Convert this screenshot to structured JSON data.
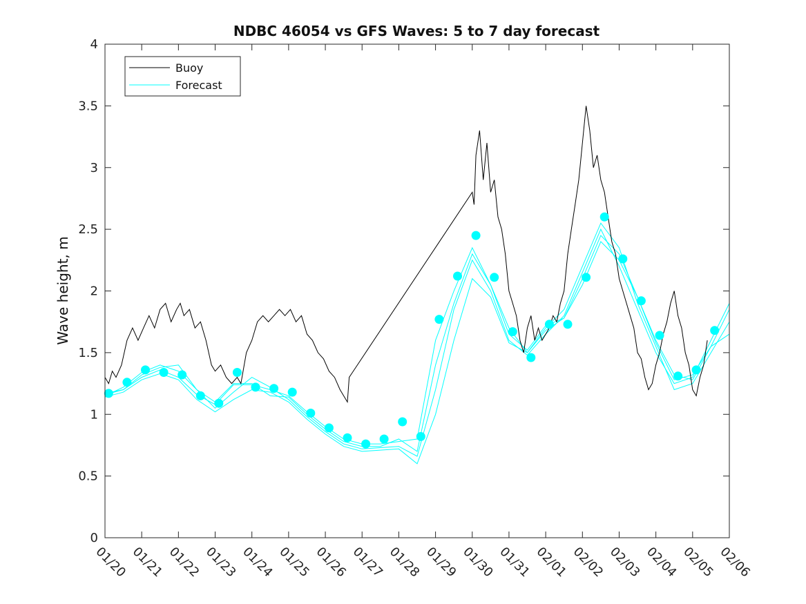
{
  "chart_data": {
    "type": "line",
    "title": "NDBC 46054 vs GFS Waves: 5 to 7 day forecast",
    "xlabel": "",
    "ylabel": "Wave height, m",
    "xlim": [
      0,
      17
    ],
    "ylim": [
      0,
      4
    ],
    "grid": false,
    "legend": {
      "position": "top-left",
      "entries": [
        "Buoy",
        "Forecast"
      ]
    },
    "colors": {
      "buoy": "#000000",
      "forecast": "#00ffff",
      "axes": "#262626"
    },
    "x_unit": "days since 01/20",
    "x_ticks": [
      0,
      1,
      2,
      3,
      4,
      5,
      6,
      7,
      8,
      9,
      10,
      11,
      12,
      13,
      14,
      15,
      16,
      17
    ],
    "x_tick_labels": [
      "01/20",
      "01/21",
      "01/22",
      "01/23",
      "01/24",
      "01/25",
      "01/26",
      "01/27",
      "01/28",
      "01/29",
      "01/30",
      "01/31",
      "02/01",
      "02/02",
      "02/03",
      "02/04",
      "02/05",
      "02/06"
    ],
    "y_ticks": [
      0,
      0.5,
      1,
      1.5,
      2,
      2.5,
      3,
      3.5,
      4
    ],
    "y_tick_labels": [
      "0",
      "0.5",
      "1",
      "1.5",
      "2",
      "2.5",
      "3",
      "3.5",
      "4"
    ],
    "series": [
      {
        "name": "Buoy",
        "kind": "line",
        "x": [
          0,
          0.1,
          0.2,
          0.3,
          0.45,
          0.6,
          0.75,
          0.9,
          1.05,
          1.2,
          1.35,
          1.5,
          1.65,
          1.8,
          1.95,
          2.05,
          2.15,
          2.3,
          2.45,
          2.6,
          2.75,
          2.9,
          3.0,
          3.15,
          3.3,
          3.45,
          3.6,
          3.7,
          3.85,
          4.0,
          4.15,
          4.3,
          4.45,
          4.6,
          4.75,
          4.9,
          5.05,
          5.2,
          5.35,
          5.5,
          5.65,
          5.8,
          5.95,
          6.1,
          6.25,
          6.4,
          6.5,
          6.6,
          6.65,
          10.0,
          10.05,
          10.1,
          10.2,
          10.3,
          10.4,
          10.5,
          10.6,
          10.7,
          10.8,
          10.9,
          11.0,
          11.1,
          11.2,
          11.3,
          11.4,
          11.5,
          11.6,
          11.7,
          11.8,
          11.9,
          12.0,
          12.1,
          12.2,
          12.3,
          12.4,
          12.5,
          12.6,
          12.7,
          12.8,
          12.9,
          13.0,
          13.1,
          13.2,
          13.3,
          13.4,
          13.5,
          13.6,
          13.7,
          13.8,
          13.9,
          14.0,
          14.1,
          14.2,
          14.3,
          14.4,
          14.5,
          14.6,
          14.7,
          14.8,
          14.9,
          15.0,
          15.1,
          15.2,
          15.3,
          15.4,
          15.5,
          15.6,
          15.7,
          15.8,
          15.9,
          16.0,
          16.1,
          16.2,
          16.3,
          16.4
        ],
        "y": [
          1.3,
          1.25,
          1.35,
          1.3,
          1.4,
          1.6,
          1.7,
          1.6,
          1.7,
          1.8,
          1.7,
          1.85,
          1.9,
          1.75,
          1.85,
          1.9,
          1.8,
          1.85,
          1.7,
          1.75,
          1.6,
          1.4,
          1.35,
          1.4,
          1.3,
          1.25,
          1.3,
          1.25,
          1.5,
          1.6,
          1.75,
          1.8,
          1.75,
          1.8,
          1.85,
          1.8,
          1.85,
          1.75,
          1.8,
          1.65,
          1.6,
          1.5,
          1.45,
          1.35,
          1.3,
          1.2,
          1.15,
          1.1,
          1.3,
          2.8,
          2.7,
          3.1,
          3.3,
          2.9,
          3.2,
          2.8,
          2.9,
          2.6,
          2.5,
          2.3,
          2.0,
          1.9,
          1.8,
          1.6,
          1.5,
          1.7,
          1.8,
          1.6,
          1.7,
          1.6,
          1.65,
          1.7,
          1.8,
          1.75,
          1.9,
          2.0,
          2.3,
          2.5,
          2.7,
          2.9,
          3.2,
          3.5,
          3.3,
          3.0,
          3.1,
          2.9,
          2.8,
          2.6,
          2.4,
          2.3,
          2.1,
          2.0,
          1.9,
          1.8,
          1.7,
          1.5,
          1.45,
          1.3,
          1.2,
          1.25,
          1.4,
          1.5,
          1.65,
          1.75,
          1.9,
          2.0,
          1.8,
          1.7,
          1.5,
          1.4,
          1.2,
          1.15,
          1.3,
          1.4,
          1.6
        ]
      },
      {
        "name": "Forecast",
        "kind": "markers",
        "x": [
          0.1,
          0.6,
          1.1,
          1.6,
          2.1,
          2.6,
          3.1,
          3.6,
          4.1,
          4.6,
          5.1,
          5.6,
          6.1,
          6.6,
          7.1,
          7.6,
          8.1,
          8.6,
          9.1,
          9.6,
          10.1,
          10.6,
          11.1,
          11.6,
          12.1,
          12.6,
          13.1,
          13.6,
          14.1,
          14.6,
          15.1,
          15.6,
          16.1,
          16.6
        ],
        "y": [
          1.17,
          1.26,
          1.36,
          1.34,
          1.32,
          1.15,
          1.09,
          1.34,
          1.22,
          1.21,
          1.18,
          1.01,
          0.89,
          0.81,
          0.76,
          0.8,
          0.94,
          0.82,
          1.77,
          2.12,
          2.45,
          2.11,
          1.67,
          1.46,
          1.73,
          1.73,
          2.11,
          2.6,
          2.26,
          1.92,
          1.64,
          1.31,
          1.36,
          1.68
        ]
      },
      {
        "name": "Forecast",
        "kind": "line",
        "x": [
          0,
          0.5,
          1,
          1.5,
          2,
          2.5,
          3,
          3.5,
          4,
          4.5,
          5,
          5.5,
          6,
          6.5,
          7,
          7.5,
          8,
          8.5,
          9,
          9.5,
          10,
          10.5,
          11,
          11.5,
          12,
          12.5,
          13,
          13.5,
          14,
          14.5,
          15,
          15.5,
          16,
          16.5,
          17
        ],
        "y": [
          1.17,
          1.2,
          1.3,
          1.36,
          1.3,
          1.16,
          1.08,
          1.24,
          1.24,
          1.2,
          1.15,
          1.02,
          0.9,
          0.8,
          0.76,
          0.76,
          0.78,
          0.8,
          1.6,
          2.0,
          2.35,
          2.05,
          1.7,
          1.5,
          1.68,
          1.78,
          2.1,
          2.45,
          2.3,
          1.95,
          1.6,
          1.32,
          1.28,
          1.55,
          1.85
        ]
      },
      {
        "name": "Forecast",
        "kind": "line",
        "x": [
          0,
          0.5,
          1,
          1.5,
          2,
          2.5,
          3,
          3.5,
          4,
          4.5,
          5,
          5.5,
          6,
          6.5,
          7,
          7.5,
          8,
          8.5,
          9,
          9.5,
          10,
          10.5,
          11,
          11.5,
          12,
          12.5,
          13,
          13.5,
          14,
          14.5,
          15,
          15.5,
          16,
          16.5,
          17
        ],
        "y": [
          1.15,
          1.22,
          1.34,
          1.4,
          1.35,
          1.2,
          1.05,
          1.18,
          1.3,
          1.22,
          1.12,
          0.98,
          0.86,
          0.76,
          0.72,
          0.73,
          0.74,
          0.66,
          1.2,
          1.85,
          2.25,
          2.0,
          1.6,
          1.48,
          1.65,
          1.8,
          2.15,
          2.5,
          2.2,
          1.85,
          1.5,
          1.25,
          1.3,
          1.6,
          1.9
        ]
      },
      {
        "name": "Forecast",
        "kind": "line",
        "x": [
          0,
          0.5,
          1,
          1.5,
          2,
          2.5,
          3,
          3.5,
          4,
          4.5,
          5,
          5.5,
          6,
          6.5,
          7,
          7.5,
          8,
          8.5,
          9,
          9.5,
          10,
          10.5,
          11,
          11.5,
          12,
          12.5,
          13,
          13.5,
          14,
          14.5,
          15,
          15.5,
          16,
          16.5,
          17
        ],
        "y": [
          1.14,
          1.18,
          1.28,
          1.33,
          1.28,
          1.12,
          1.02,
          1.12,
          1.2,
          1.18,
          1.1,
          0.96,
          0.84,
          0.74,
          0.7,
          0.71,
          0.72,
          0.6,
          1.0,
          1.6,
          2.1,
          1.95,
          1.58,
          1.5,
          1.7,
          1.85,
          2.2,
          2.55,
          2.35,
          1.9,
          1.55,
          1.2,
          1.25,
          1.5,
          1.75
        ]
      },
      {
        "name": "Forecast",
        "kind": "line",
        "x": [
          0,
          0.5,
          1,
          1.5,
          2,
          2.5,
          3,
          3.5,
          4,
          4.5,
          5,
          5.5,
          6,
          6.5,
          7,
          7.5,
          8,
          8.5,
          9,
          9.5,
          10,
          10.5,
          11,
          11.5,
          12,
          12.5,
          13,
          13.5,
          14,
          14.5,
          15,
          15.5,
          16,
          16.5,
          17
        ],
        "y": [
          1.16,
          1.2,
          1.32,
          1.38,
          1.4,
          1.2,
          1.1,
          1.25,
          1.25,
          1.15,
          1.14,
          1.0,
          0.88,
          0.78,
          0.74,
          0.74,
          0.8,
          0.7,
          1.4,
          1.9,
          2.3,
          2.05,
          1.65,
          1.52,
          1.72,
          1.78,
          2.05,
          2.4,
          2.25,
          1.95,
          1.58,
          1.28,
          1.32,
          1.55,
          1.65
        ]
      }
    ]
  }
}
